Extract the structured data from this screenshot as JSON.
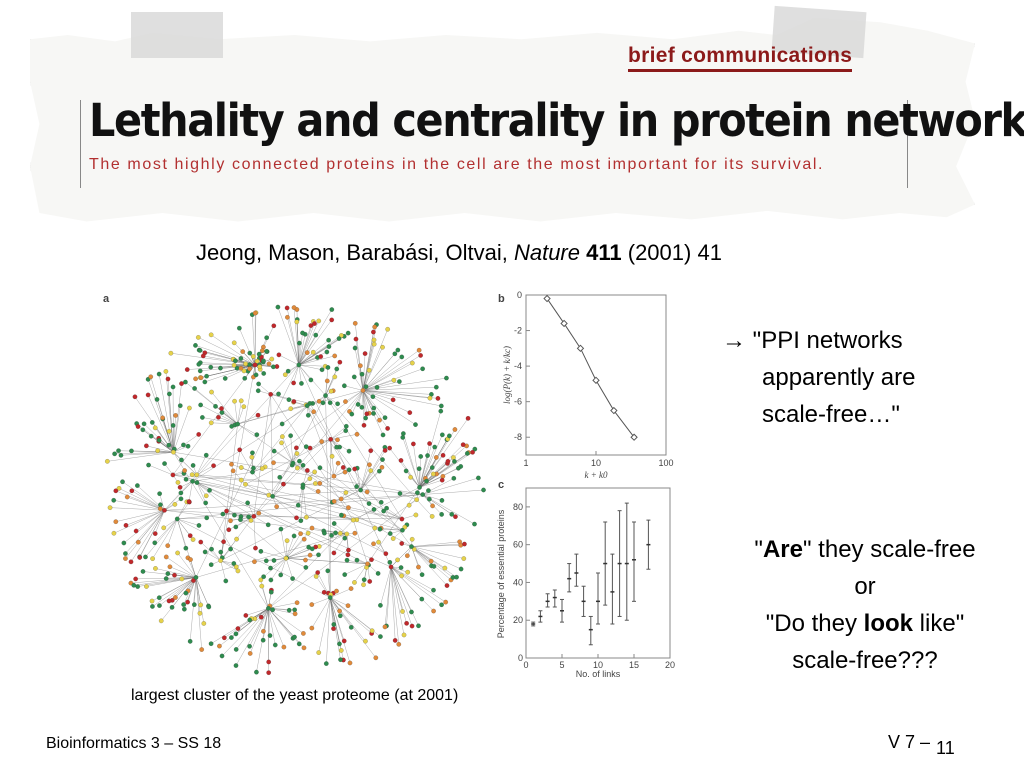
{
  "clipping": {
    "section": "brief communications",
    "title": "Lethality and centrality in protein networks",
    "subtitle": "The most highly connected proteins in the cell are the most important for its survival."
  },
  "citation": {
    "authors": "Jeong, Mason, Barabási, Oltvai,",
    "journal": "Nature",
    "volume": "411",
    "rest": "(2001) 41"
  },
  "figure": {
    "panel_a": "a",
    "panel_b": "b",
    "panel_c": "c",
    "caption": "largest cluster of the yeast proteome (at 2001)"
  },
  "chart_data": [
    {
      "type": "line",
      "panel": "b",
      "xlabel": "k + k0",
      "ylabel": "log(P(k) + k/kc)",
      "xscale": "log",
      "xlim": [
        1,
        100
      ],
      "ylim": [
        -9,
        0
      ],
      "xticks": [
        "1",
        "10",
        "100"
      ],
      "yticks": [
        "0",
        "-2",
        "-4",
        "-6",
        "-8"
      ],
      "x": [
        2,
        3.5,
        6,
        10,
        18,
        35
      ],
      "y": [
        -0.2,
        -1.6,
        -3.0,
        -4.8,
        -6.5,
        -8.0
      ]
    },
    {
      "type": "scatter",
      "panel": "c",
      "xlabel": "No. of links",
      "ylabel": "Percentage of essential proteins",
      "xlim": [
        0,
        20
      ],
      "ylim": [
        0,
        90
      ],
      "xticks": [
        "0",
        "5",
        "10",
        "15",
        "20"
      ],
      "yticks": [
        "0",
        "20",
        "40",
        "60",
        "80"
      ],
      "points": [
        {
          "x": 1,
          "y": 18,
          "lo": 17,
          "hi": 19
        },
        {
          "x": 2,
          "y": 22,
          "lo": 19,
          "hi": 25
        },
        {
          "x": 3,
          "y": 30,
          "lo": 27,
          "hi": 34
        },
        {
          "x": 4,
          "y": 32,
          "lo": 27,
          "hi": 36
        },
        {
          "x": 5,
          "y": 25,
          "lo": 19,
          "hi": 31
        },
        {
          "x": 6,
          "y": 42,
          "lo": 35,
          "hi": 50
        },
        {
          "x": 7,
          "y": 45,
          "lo": 38,
          "hi": 55
        },
        {
          "x": 8,
          "y": 30,
          "lo": 22,
          "hi": 38
        },
        {
          "x": 9,
          "y": 15,
          "lo": 7,
          "hi": 22
        },
        {
          "x": 10,
          "y": 30,
          "lo": 18,
          "hi": 45
        },
        {
          "x": 11,
          "y": 50,
          "lo": 28,
          "hi": 72
        },
        {
          "x": 12,
          "y": 35,
          "lo": 18,
          "hi": 55
        },
        {
          "x": 13,
          "y": 50,
          "lo": 22,
          "hi": 78
        },
        {
          "x": 14,
          "y": 50,
          "lo": 20,
          "hi": 82
        },
        {
          "x": 15,
          "y": 52,
          "lo": 30,
          "hi": 72
        },
        {
          "x": 17,
          "y": 60,
          "lo": 47,
          "hi": 73
        }
      ]
    }
  ],
  "right_text": {
    "arrow_line1": "→ \"PPI networks",
    "arrow_line2": "apparently are",
    "arrow_line3": "scale-free…\"",
    "q_are": "Are",
    "q_line1_rest": "\" they scale-free",
    "q_line2": "or",
    "q_do": "\"Do they ",
    "q_look": "look",
    "q_like": " like\"",
    "q_line4": "scale-free???"
  },
  "footer": {
    "left": "Bioinformatics 3 – SS 18",
    "right": "V 7 –",
    "page": "11"
  },
  "colors": {
    "brief": "#8c1a1a",
    "subtitle": "#b23030",
    "node_green": "#2e8b4e",
    "node_red": "#c0282b",
    "node_yellow": "#e6d24a",
    "node_orange": "#e08a3a"
  }
}
